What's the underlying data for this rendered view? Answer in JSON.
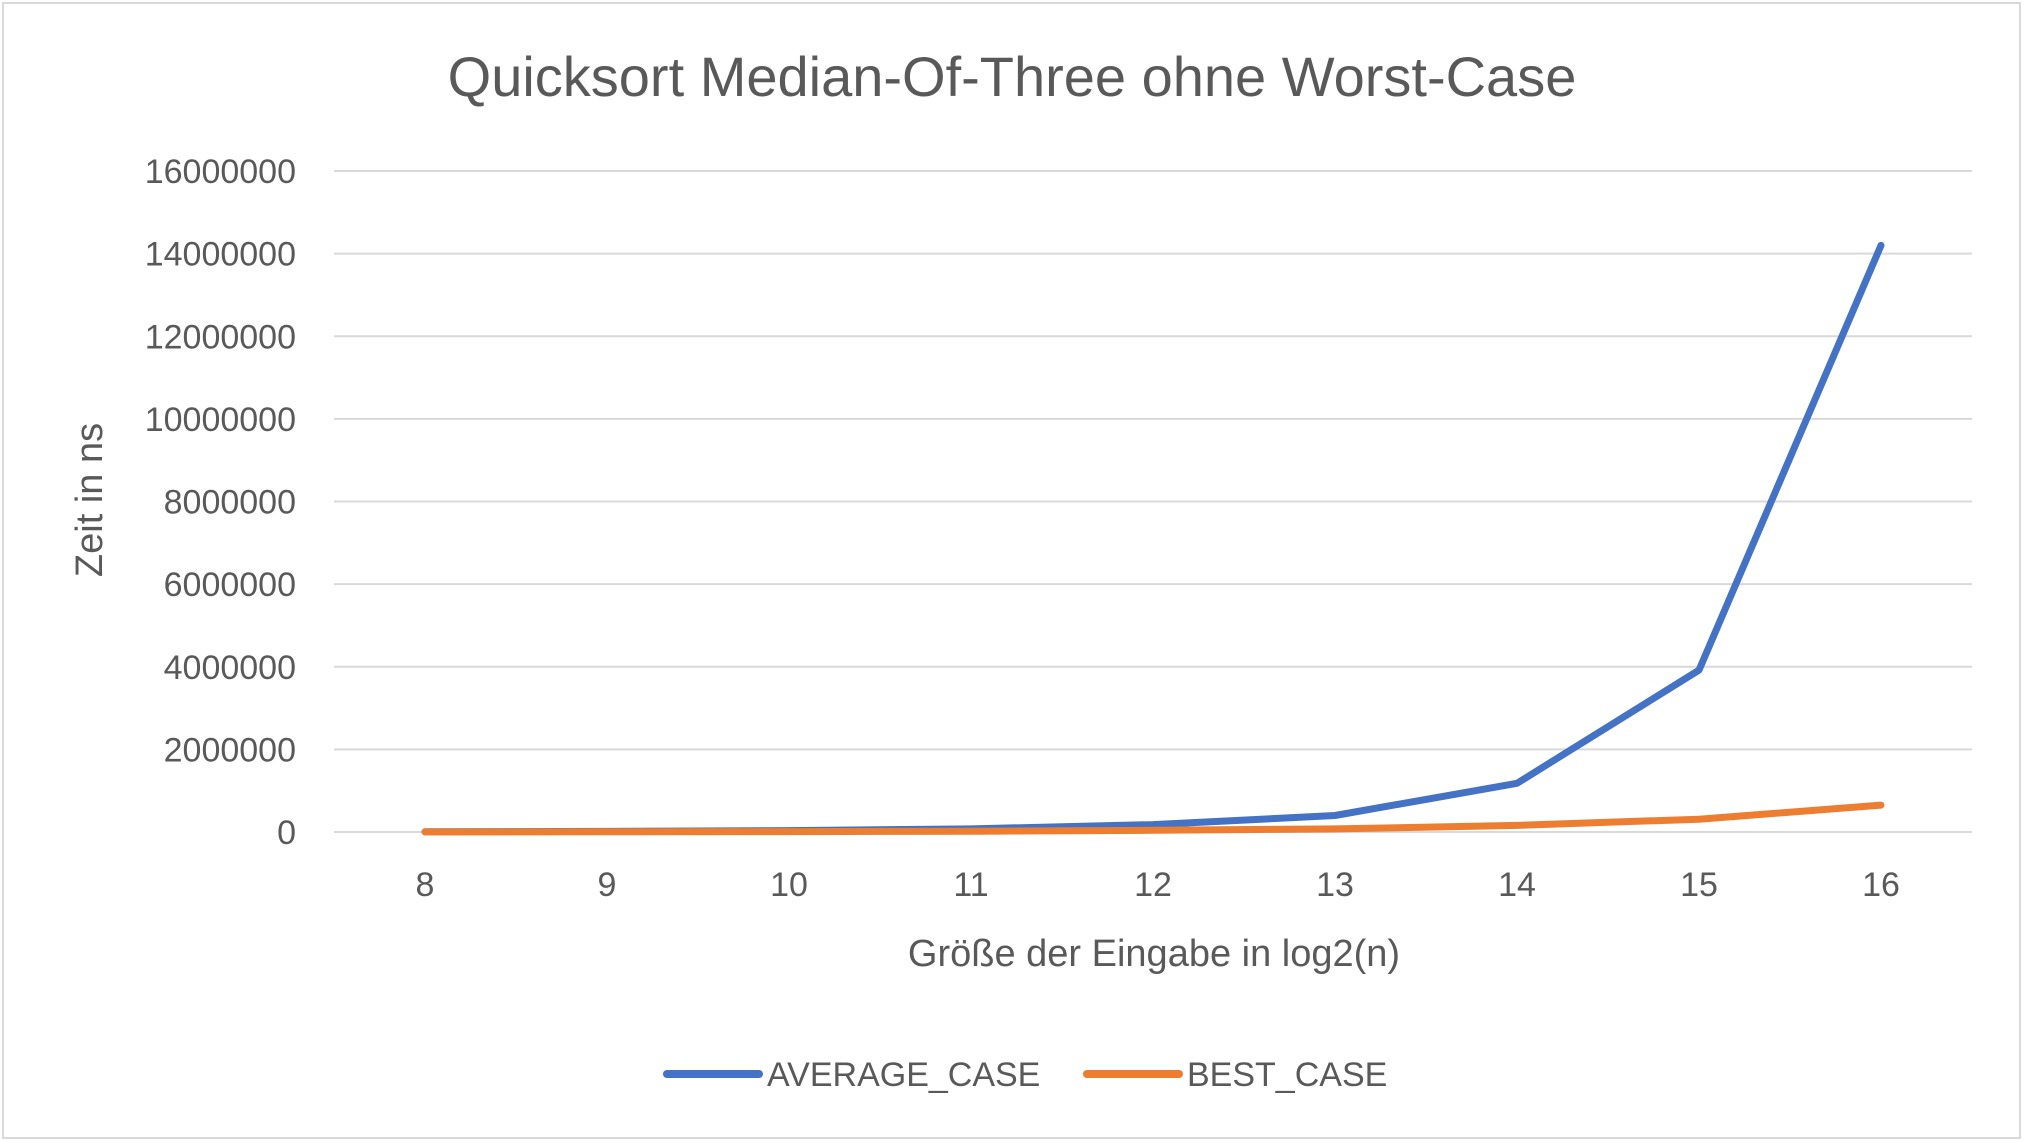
{
  "chart_data": {
    "type": "line",
    "title": "Quicksort Median-Of-Three ohne Worst-Case",
    "xlabel": "Größe der Eingabe in log2(n)",
    "ylabel": "Zeit in ns",
    "categories": [
      "8",
      "9",
      "10",
      "11",
      "12",
      "13",
      "14",
      "15",
      "16"
    ],
    "ylim": [
      0,
      16000000
    ],
    "yticks": [
      "0",
      "2000000",
      "4000000",
      "6000000",
      "8000000",
      "10000000",
      "12000000",
      "14000000",
      "16000000"
    ],
    "grid": true,
    "legend": "bottom",
    "series": [
      {
        "name": "AVERAGE_CASE",
        "color": "#4472c4",
        "values": [
          5000,
          15000,
          35000,
          75000,
          180000,
          400000,
          1180000,
          3920000,
          14200000
        ]
      },
      {
        "name": "BEST_CASE",
        "color": "#ed7d31",
        "values": [
          2000,
          5000,
          10000,
          20000,
          40000,
          75000,
          160000,
          310000,
          650000
        ]
      }
    ]
  }
}
